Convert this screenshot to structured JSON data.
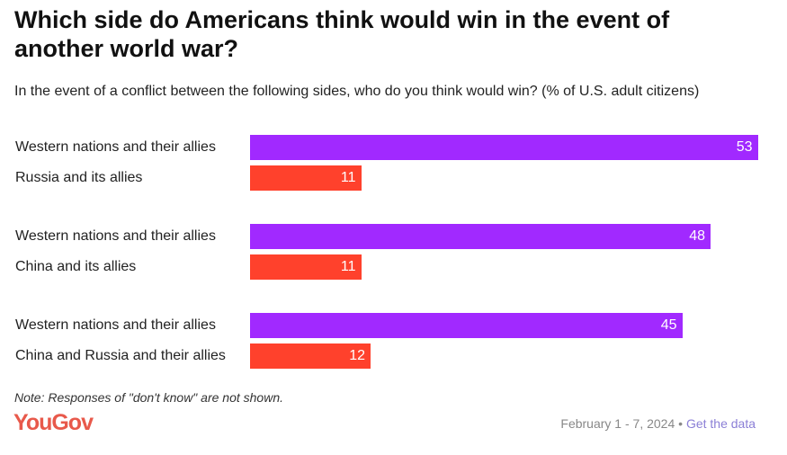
{
  "title": "Which side do Americans think would win in the event of another world war?",
  "subtitle": "In the event of a conflict between the following sides, who do you think would win? (% of U.S. adult citizens)",
  "chart_data": {
    "type": "bar",
    "orientation": "horizontal",
    "colors": {
      "western": "#a129ff",
      "opponent": "#ff412c"
    },
    "groups": [
      {
        "bars": [
          {
            "label": "Western nations and their allies",
            "value": 53,
            "side": "western"
          },
          {
            "label": "Russia and its allies",
            "value": 11,
            "side": "opponent"
          }
        ]
      },
      {
        "bars": [
          {
            "label": "Western nations and their allies",
            "value": 48,
            "side": "western"
          },
          {
            "label": "China and its allies",
            "value": 11,
            "side": "opponent"
          }
        ]
      },
      {
        "bars": [
          {
            "label": "Western nations and their allies",
            "value": 45,
            "side": "western"
          },
          {
            "label": "China and Russia and their allies",
            "value": 12,
            "side": "opponent"
          }
        ]
      }
    ]
  },
  "note": "Note: Responses of \"don't know\" are not shown.",
  "logo": "YouGov",
  "footer": {
    "date": "February 1 - 7, 2024",
    "separator": "•",
    "link": "Get the data"
  }
}
